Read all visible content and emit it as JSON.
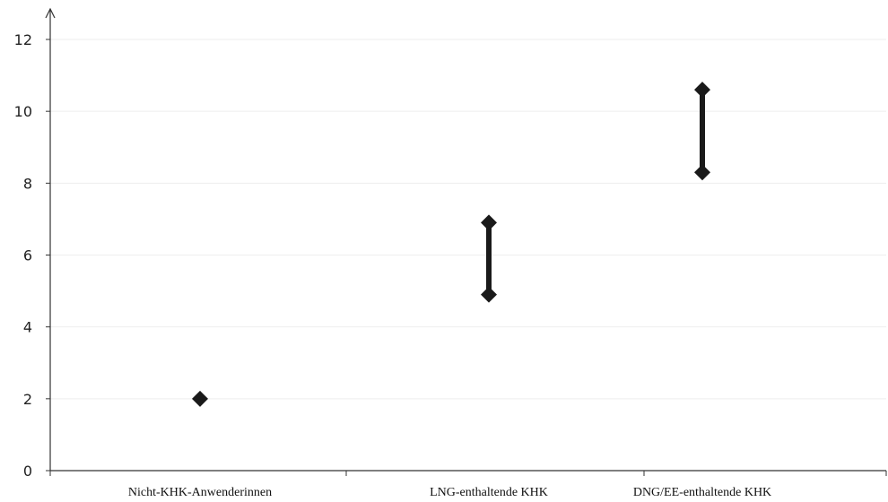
{
  "chart_data": {
    "type": "range",
    "categories": [
      "Nicht-KHK-Anwenderinnen",
      "LNG-enthaltende KHK",
      "DNG/EE-enthaltende KHK"
    ],
    "series": [
      {
        "low": 2,
        "high": 2
      },
      {
        "low": 4.9,
        "high": 6.9
      },
      {
        "low": 8.3,
        "high": 10.6
      }
    ],
    "ylim": [
      0,
      12
    ],
    "yticks": [
      0,
      2,
      4,
      6,
      8,
      10,
      12
    ],
    "title": "",
    "xlabel": "",
    "ylabel": "",
    "grid": true,
    "legend": "none"
  },
  "colors": {
    "marker": "#1a1a1a",
    "axis": "#333333",
    "grid": "#eeeeee"
  }
}
